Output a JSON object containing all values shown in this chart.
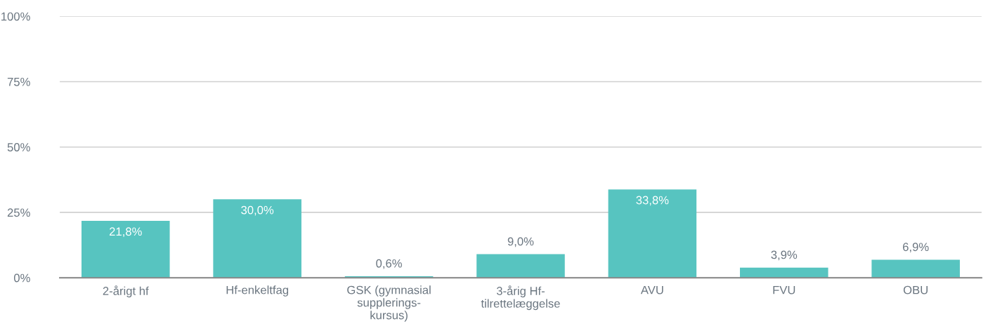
{
  "chart_data": {
    "type": "bar",
    "categories": [
      "2-årigt hf",
      "Hf-enkeltfag",
      "GSK (gymnasial\nsupplerings-\nkursus)",
      "3-årig Hf-\ntilrettelæggelse",
      "AVU",
      "FVU",
      "OBU"
    ],
    "values": [
      21.8,
      30.0,
      0.6,
      9.0,
      33.8,
      3.9,
      6.9
    ],
    "value_labels": [
      "21,8%",
      "30,0%",
      "0,6%",
      "9,0%",
      "33,8%",
      "3,9%",
      "6,9%"
    ],
    "color": "#57c4c0",
    "ylim": [
      0,
      100
    ],
    "yticks": [
      {
        "value": 0,
        "label": "0%"
      },
      {
        "value": 25,
        "label": "25%"
      },
      {
        "value": 50,
        "label": "50%"
      },
      {
        "value": 75,
        "label": "75%"
      },
      {
        "value": 100,
        "label": "100%"
      }
    ],
    "grid": "y",
    "legend": false
  }
}
